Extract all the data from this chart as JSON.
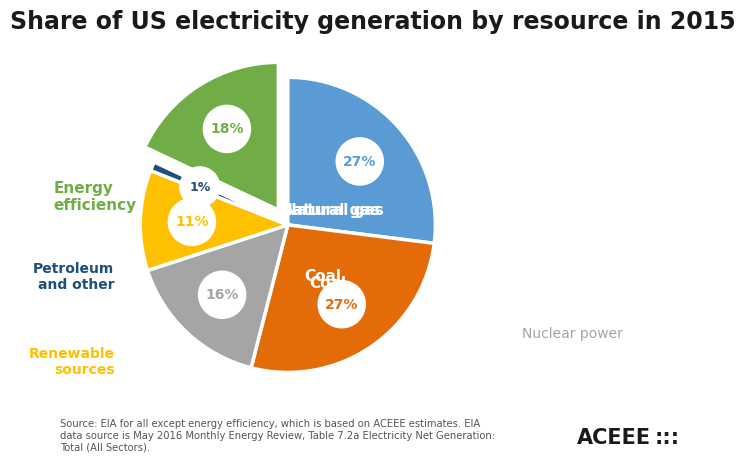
{
  "title": "Share of US electricity generation by resource in 2015",
  "slices": [
    {
      "label": "Natural gas",
      "value": 27,
      "color": "#5B9BD5",
      "pct": "27%",
      "label_color": "white",
      "label_inside": true
    },
    {
      "label": "Coal",
      "value": 27,
      "color": "#E36C09",
      "pct": "27%",
      "label_color": "white",
      "label_inside": true
    },
    {
      "label": "Nuclear power",
      "value": 16,
      "color": "#A5A5A5",
      "pct": "16%",
      "label_color": "#A5A5A5",
      "label_inside": false
    },
    {
      "label": "Renewable\nsources",
      "value": 11,
      "color": "#FFC000",
      "pct": "11%",
      "label_color": "#FFC000",
      "label_inside": false
    },
    {
      "label": "Petroleum\nand other",
      "value": 1,
      "color": "#1F4E79",
      "pct": "1%",
      "label_color": "#1F4E79",
      "label_inside": false
    },
    {
      "label": "Energy\nefficiency",
      "value": 18,
      "color": "#70AD47",
      "pct": "18%",
      "label_color": "#70AD47",
      "label_inside": false
    }
  ],
  "explode": [
    0,
    0,
    0,
    0,
    0,
    0.12
  ],
  "source_text": "Source: EIA for all except energy efficiency, which is based on ACEEE estimates. EIA\ndata source is May 2016 Monthly Energy Review, Table 7.2a Electricity Net Generation:\nTotal (All Sectors).",
  "background_color": "#FFFFFF",
  "title_fontsize": 17,
  "startangle": 90
}
